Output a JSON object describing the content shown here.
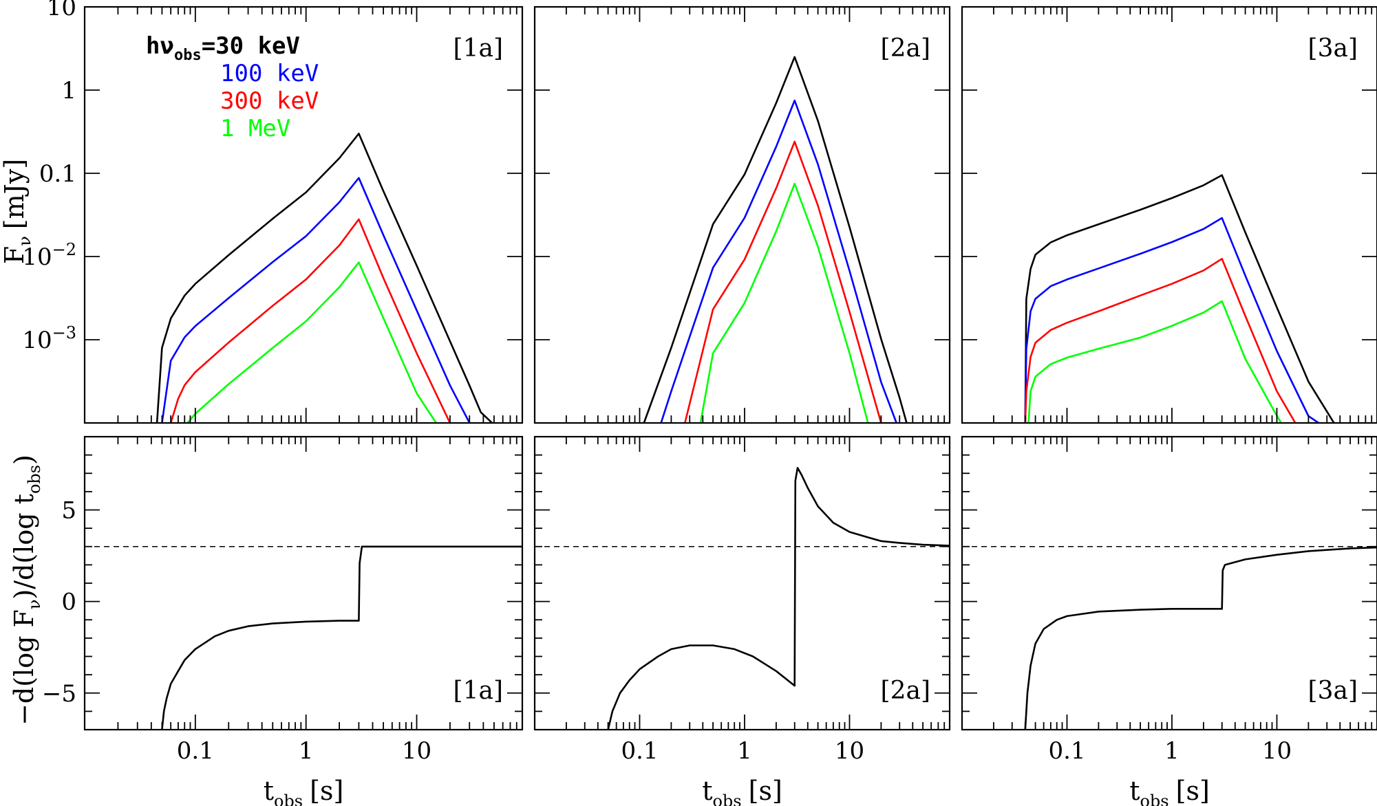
{
  "chart_data": [
    {
      "type": "line",
      "panel": "top-left",
      "tag": "[1a]",
      "yscale": "log",
      "xscale": "log",
      "xlim": [
        0.01,
        90
      ],
      "ylim": [
        0.0001,
        10
      ],
      "ytick_labels": [
        {
          "value": 10,
          "base": "10",
          "exp": ""
        },
        {
          "value": 1,
          "base": "1",
          "exp": ""
        },
        {
          "value": 0.1,
          "base": "0.1",
          "exp": ""
        },
        {
          "value": 0.01,
          "base": "10",
          "exp": "−2"
        },
        {
          "value": 0.001,
          "base": "10",
          "exp": "−3"
        }
      ],
      "ylabel": {
        "main": "F",
        "sub": "ν",
        "unit": "[mJy]"
      },
      "legend": {
        "prefix_main": "hν",
        "prefix_sub": "obs",
        "prefix_eq": "=",
        "entries": [
          "30 keV",
          "100 keV",
          "300 keV",
          "1 MeV"
        ]
      },
      "series": [
        {
          "name": "30 keV",
          "color": "#000000",
          "points": [
            [
              0.045,
              0.0001
            ],
            [
              0.05,
              0.0008
            ],
            [
              0.06,
              0.0018
            ],
            [
              0.08,
              0.0034
            ],
            [
              0.1,
              0.0047
            ],
            [
              0.2,
              0.0104
            ],
            [
              0.5,
              0.0285
            ],
            [
              1,
              0.0591
            ],
            [
              2,
              0.152
            ],
            [
              3,
              0.3
            ],
            [
              5,
              0.0611
            ],
            [
              10,
              0.0078
            ],
            [
              20,
              0.00096
            ],
            [
              30,
              0.000281
            ],
            [
              38,
              0.000134
            ],
            [
              48,
              0.0001
            ]
          ]
        },
        {
          "name": "100 keV",
          "color": "#0000ff",
          "points": [
            [
              0.05,
              0.0001
            ],
            [
              0.06,
              0.00056
            ],
            [
              0.08,
              0.00107
            ],
            [
              0.1,
              0.00146
            ],
            [
              0.2,
              0.00317
            ],
            [
              0.5,
              0.00858
            ],
            [
              1,
              0.0176
            ],
            [
              2,
              0.0449
            ],
            [
              3,
              0.088
            ],
            [
              5,
              0.0181
            ],
            [
              10,
              0.00226
            ],
            [
              20,
              0.000283
            ],
            [
              30,
              0.0001
            ]
          ]
        },
        {
          "name": "300 keV",
          "color": "#ff0000",
          "points": [
            [
              0.06,
              0.0001
            ],
            [
              0.07,
              0.000195
            ],
            [
              0.08,
              0.000285
            ],
            [
              0.1,
              0.000408
            ],
            [
              0.2,
              0.000927
            ],
            [
              0.5,
              0.00256
            ],
            [
              1,
              0.00531
            ],
            [
              2,
              0.0136
            ],
            [
              3,
              0.028
            ],
            [
              5,
              0.00552
            ],
            [
              10,
              0.000689
            ],
            [
              20,
              0.0001
            ]
          ]
        },
        {
          "name": "1 MeV",
          "color": "#00ff00",
          "points": [
            [
              0.085,
              0.0001
            ],
            [
              0.1,
              0.000129
            ],
            [
              0.2,
              0.000293
            ],
            [
              0.5,
              0.000797
            ],
            [
              1,
              0.00167
            ],
            [
              2,
              0.00427
            ],
            [
              3,
              0.0085
            ],
            [
              5,
              0.00182
            ],
            [
              10,
              0.000227
            ],
            [
              15,
              0.0001
            ]
          ]
        }
      ]
    },
    {
      "type": "line",
      "panel": "top-middle",
      "tag": "[2a]",
      "yscale": "log",
      "xscale": "log",
      "xlim": [
        0.01,
        90
      ],
      "ylim": [
        0.0001,
        10
      ],
      "series": [
        {
          "name": "30 keV",
          "color": "#000000",
          "points": [
            [
              0.11,
              0.0001
            ],
            [
              0.2,
              0.0008
            ],
            [
              0.5,
              0.0244
            ],
            [
              1,
              0.0972
            ],
            [
              2,
              0.698
            ],
            [
              3,
              2.5
            ],
            [
              5,
              0.426
            ],
            [
              10,
              0.0226
            ],
            [
              20,
              0.00102
            ],
            [
              30,
              0.000201
            ],
            [
              35,
              0.0001
            ]
          ]
        },
        {
          "name": "100 keV",
          "color": "#0000ff",
          "points": [
            [
              0.16,
              0.0001
            ],
            [
              0.2,
              0.00024
            ],
            [
              0.5,
              0.00733
            ],
            [
              1,
              0.0292
            ],
            [
              2,
              0.209
            ],
            [
              3,
              0.75
            ],
            [
              5,
              0.128
            ],
            [
              10,
              0.00673
            ],
            [
              20,
              0.000309
            ],
            [
              28,
              0.0001
            ]
          ]
        },
        {
          "name": "300 keV",
          "color": "#ff0000",
          "points": [
            [
              0.27,
              0.0001
            ],
            [
              0.5,
              0.00232
            ],
            [
              1,
              0.00924
            ],
            [
              2,
              0.0662
            ],
            [
              3,
              0.24
            ],
            [
              5,
              0.0409
            ],
            [
              10,
              0.00216
            ],
            [
              20,
              0.0001
            ]
          ]
        },
        {
          "name": "1 MeV",
          "color": "#00ff00",
          "points": [
            [
              0.38,
              0.0001
            ],
            [
              0.5,
              0.000688
            ],
            [
              1,
              0.00277
            ],
            [
              2,
              0.0201
            ],
            [
              3,
              0.075
            ],
            [
              5,
              0.0131
            ],
            [
              10,
              0.00069
            ],
            [
              15,
              0.0001
            ]
          ]
        }
      ]
    },
    {
      "type": "line",
      "panel": "top-right",
      "tag": "[3a]",
      "yscale": "log",
      "xscale": "log",
      "xlim": [
        0.01,
        90
      ],
      "ylim": [
        0.0001,
        10
      ],
      "series": [
        {
          "name": "30 keV",
          "color": "#000000",
          "points": [
            [
              0.04,
              0.0001
            ],
            [
              0.041,
              0.0031
            ],
            [
              0.045,
              0.0071
            ],
            [
              0.05,
              0.0105
            ],
            [
              0.07,
              0.0148
            ],
            [
              0.1,
              0.018
            ],
            [
              0.2,
              0.0244
            ],
            [
              0.5,
              0.0365
            ],
            [
              1,
              0.0504
            ],
            [
              2,
              0.0718
            ],
            [
              3,
              0.095
            ],
            [
              5,
              0.0195
            ],
            [
              10,
              0.00244
            ],
            [
              20,
              0.000314
            ],
            [
              35,
              0.0001
            ]
          ]
        },
        {
          "name": "100 keV",
          "color": "#0000ff",
          "points": [
            [
              0.04,
              0.0001
            ],
            [
              0.041,
              0.00077
            ],
            [
              0.045,
              0.0022
            ],
            [
              0.05,
              0.0031
            ],
            [
              0.07,
              0.0044
            ],
            [
              0.1,
              0.0053
            ],
            [
              0.2,
              0.0072
            ],
            [
              0.5,
              0.0108
            ],
            [
              1,
              0.0149
            ],
            [
              2,
              0.0214
            ],
            [
              3,
              0.029
            ],
            [
              5,
              0.0059
            ],
            [
              10,
              0.00073
            ],
            [
              20,
              0.000121
            ],
            [
              25,
              0.0001
            ]
          ]
        },
        {
          "name": "300 keV",
          "color": "#ff0000",
          "points": [
            [
              0.04,
              0.0001
            ],
            [
              0.041,
              0.00024
            ],
            [
              0.045,
              0.00062
            ],
            [
              0.05,
              0.00092
            ],
            [
              0.07,
              0.00131
            ],
            [
              0.1,
              0.0016
            ],
            [
              0.2,
              0.0022
            ],
            [
              0.5,
              0.0034
            ],
            [
              1,
              0.0047
            ],
            [
              2,
              0.0068
            ],
            [
              3,
              0.0094
            ],
            [
              5,
              0.00193
            ],
            [
              10,
              0.00024
            ],
            [
              15,
              0.0001
            ]
          ]
        },
        {
          "name": "1 MeV",
          "color": "#00ff00",
          "points": [
            [
              0.043,
              0.0001
            ],
            [
              0.045,
              0.00024
            ],
            [
              0.05,
              0.00036
            ],
            [
              0.07,
              0.00051
            ],
            [
              0.1,
              0.00061
            ],
            [
              0.2,
              0.00078
            ],
            [
              0.5,
              0.00106
            ],
            [
              1,
              0.00147
            ],
            [
              2,
              0.00212
            ],
            [
              3,
              0.0029
            ],
            [
              5,
              0.00059
            ],
            [
              10,
              0.000122
            ],
            [
              11,
              0.0001
            ]
          ]
        }
      ]
    },
    {
      "type": "line",
      "panel": "bottom-left",
      "tag": "[1a]",
      "xscale": "log",
      "yscale": "linear",
      "xlim": [
        0.01,
        90
      ],
      "ylim": [
        -7,
        9
      ],
      "xtick_labels": [
        {
          "value": 0.1,
          "label": "0.1"
        },
        {
          "value": 1,
          "label": "1"
        },
        {
          "value": 10,
          "label": "10"
        }
      ],
      "ytick_labels": [
        {
          "value": 5,
          "label": "5"
        },
        {
          "value": 0,
          "label": "0"
        },
        {
          "value": -5,
          "label": "−5"
        }
      ],
      "xlabel": {
        "main": "t",
        "sub": "obs",
        "unit": "[s]"
      },
      "ylabel": {
        "main": "−d(log F",
        "sub1": "ν",
        "mid": ")/d(log t",
        "sub2": "obs",
        "end": ")"
      },
      "reference_line": {
        "y": 3,
        "style": "dashed"
      },
      "series": [
        {
          "name": "",
          "color": "#000000",
          "points": [
            [
              0.05,
              -7
            ],
            [
              0.052,
              -6
            ],
            [
              0.055,
              -5.3
            ],
            [
              0.06,
              -4.5
            ],
            [
              0.07,
              -3.8
            ],
            [
              0.08,
              -3.2
            ],
            [
              0.1,
              -2.6
            ],
            [
              0.15,
              -1.9
            ],
            [
              0.2,
              -1.6
            ],
            [
              0.3,
              -1.35
            ],
            [
              0.5,
              -1.2
            ],
            [
              1,
              -1.1
            ],
            [
              2,
              -1.05
            ],
            [
              3,
              -1.05
            ],
            [
              3.05,
              2.1
            ],
            [
              3.2,
              3.0
            ],
            [
              90,
              3.0
            ]
          ]
        }
      ]
    },
    {
      "type": "line",
      "panel": "bottom-middle",
      "tag": "[2a]",
      "xscale": "log",
      "yscale": "linear",
      "xlim": [
        0.01,
        90
      ],
      "ylim": [
        -7,
        9
      ],
      "xtick_labels": [
        {
          "value": 0.1,
          "label": "0.1"
        },
        {
          "value": 1,
          "label": "1"
        },
        {
          "value": 10,
          "label": "10"
        }
      ],
      "xlabel": {
        "main": "t",
        "sub": "obs",
        "unit": "[s]"
      },
      "reference_line": {
        "y": 3,
        "style": "dashed"
      },
      "series": [
        {
          "name": "",
          "color": "#000000",
          "points": [
            [
              0.05,
              -7
            ],
            [
              0.055,
              -6
            ],
            [
              0.065,
              -5
            ],
            [
              0.08,
              -4.3
            ],
            [
              0.1,
              -3.7
            ],
            [
              0.15,
              -3.0
            ],
            [
              0.2,
              -2.6
            ],
            [
              0.3,
              -2.4
            ],
            [
              0.5,
              -2.4
            ],
            [
              0.8,
              -2.6
            ],
            [
              1.2,
              -3.0
            ],
            [
              2,
              -3.8
            ],
            [
              3,
              -4.6
            ],
            [
              3.05,
              6.6
            ],
            [
              3.2,
              7.3
            ],
            [
              3.5,
              6.9
            ],
            [
              4,
              6.2
            ],
            [
              5,
              5.2
            ],
            [
              7,
              4.3
            ],
            [
              10,
              3.8
            ],
            [
              15,
              3.5
            ],
            [
              20,
              3.3
            ],
            [
              30,
              3.2
            ],
            [
              50,
              3.1
            ],
            [
              90,
              3.05
            ]
          ]
        }
      ]
    },
    {
      "type": "line",
      "panel": "bottom-right",
      "tag": "[3a]",
      "xscale": "log",
      "yscale": "linear",
      "xlim": [
        0.01,
        90
      ],
      "ylim": [
        -7,
        9
      ],
      "xtick_labels": [
        {
          "value": 0.1,
          "label": "0.1"
        },
        {
          "value": 1,
          "label": "1"
        },
        {
          "value": 10,
          "label": "10"
        }
      ],
      "xlabel": {
        "main": "t",
        "sub": "obs",
        "unit": "[s]"
      },
      "reference_line": {
        "y": 3,
        "style": "dashed"
      },
      "series": [
        {
          "name": "",
          "color": "#000000",
          "points": [
            [
              0.04,
              -7
            ],
            [
              0.042,
              -5
            ],
            [
              0.045,
              -3.5
            ],
            [
              0.05,
              -2.3
            ],
            [
              0.06,
              -1.5
            ],
            [
              0.08,
              -1.0
            ],
            [
              0.1,
              -0.8
            ],
            [
              0.2,
              -0.55
            ],
            [
              0.5,
              -0.45
            ],
            [
              1,
              -0.4
            ],
            [
              2,
              -0.4
            ],
            [
              3,
              -0.4
            ],
            [
              3.05,
              1.7
            ],
            [
              3.2,
              2.0
            ],
            [
              5,
              2.3
            ],
            [
              10,
              2.55
            ],
            [
              20,
              2.75
            ],
            [
              50,
              2.9
            ],
            [
              90,
              2.95
            ]
          ]
        }
      ]
    }
  ]
}
